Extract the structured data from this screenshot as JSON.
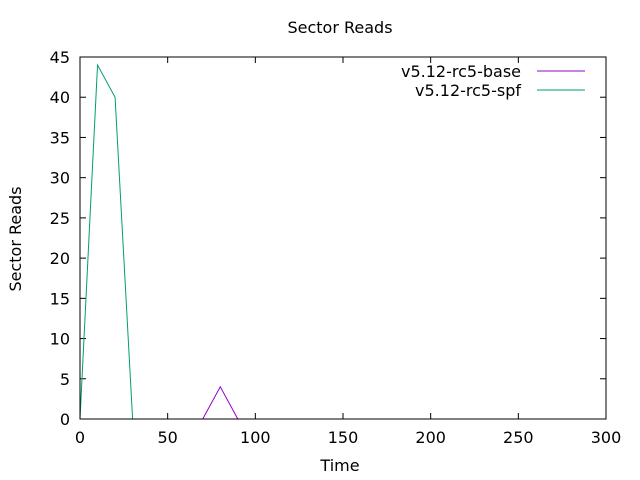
{
  "chart_data": {
    "type": "line",
    "title": "Sector Reads",
    "xlabel": "Time",
    "ylabel": "Sector Reads",
    "xlim": [
      0,
      300
    ],
    "ylim": [
      0,
      45
    ],
    "x_ticks": [
      0,
      50,
      100,
      150,
      200,
      250,
      300
    ],
    "y_ticks": [
      0,
      5,
      10,
      15,
      20,
      25,
      30,
      35,
      40,
      45
    ],
    "grid": false,
    "legend_position": "top-right",
    "series": [
      {
        "name": "v5.12-rc5-base",
        "color": "#9400d3",
        "points": [
          [
            0,
            0
          ],
          [
            10,
            0
          ],
          [
            20,
            0
          ],
          [
            30,
            0
          ],
          [
            40,
            0
          ],
          [
            50,
            0
          ],
          [
            60,
            0
          ],
          [
            70,
            0
          ],
          [
            80,
            4
          ],
          [
            90,
            0
          ],
          [
            100,
            0
          ],
          [
            110,
            0
          ],
          [
            120,
            0
          ],
          [
            130,
            0
          ],
          [
            140,
            0
          ],
          [
            150,
            0
          ],
          [
            160,
            0
          ],
          [
            170,
            0
          ],
          [
            180,
            0
          ],
          [
            190,
            0
          ],
          [
            200,
            0
          ],
          [
            210,
            0
          ],
          [
            220,
            0
          ],
          [
            230,
            0
          ],
          [
            240,
            0
          ],
          [
            250,
            0
          ],
          [
            260,
            0
          ],
          [
            270,
            0
          ],
          [
            280,
            0
          ],
          [
            290,
            0
          ],
          [
            300,
            0
          ]
        ]
      },
      {
        "name": "v5.12-rc5-spf",
        "color": "#009e73",
        "points": [
          [
            0,
            0
          ],
          [
            10,
            44
          ],
          [
            20,
            40
          ],
          [
            30,
            0
          ],
          [
            40,
            0
          ],
          [
            50,
            0
          ],
          [
            60,
            0
          ],
          [
            70,
            0
          ],
          [
            80,
            0
          ],
          [
            90,
            0
          ],
          [
            100,
            0
          ],
          [
            110,
            0
          ],
          [
            120,
            0
          ],
          [
            130,
            0
          ],
          [
            140,
            0
          ],
          [
            150,
            0
          ],
          [
            160,
            0
          ],
          [
            170,
            0
          ],
          [
            180,
            0
          ],
          [
            190,
            0
          ],
          [
            200,
            0
          ],
          [
            210,
            0
          ],
          [
            220,
            0
          ],
          [
            230,
            0
          ],
          [
            240,
            0
          ],
          [
            250,
            0
          ],
          [
            260,
            0
          ],
          [
            270,
            0
          ],
          [
            280,
            0
          ],
          [
            290,
            0
          ],
          [
            300,
            0
          ]
        ]
      }
    ]
  }
}
